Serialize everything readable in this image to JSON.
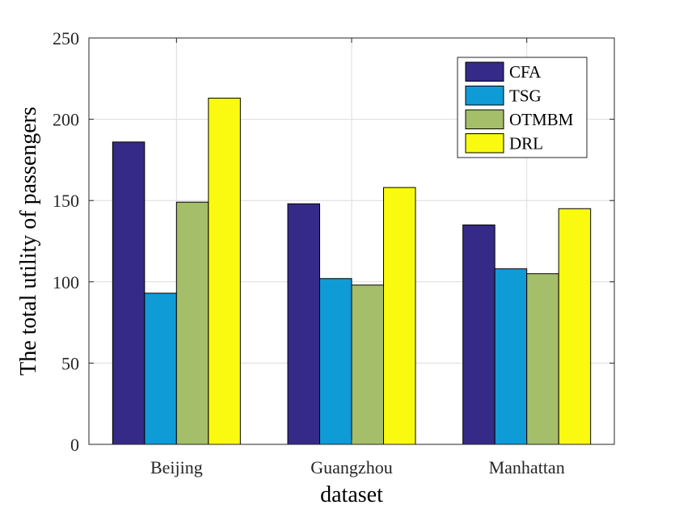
{
  "chart_data": {
    "type": "bar",
    "categories": [
      "Beijing",
      "Guangzhou",
      "Manhattan"
    ],
    "series": [
      {
        "name": "CFA",
        "color": "#352a87",
        "values": [
          186,
          148,
          135
        ]
      },
      {
        "name": "TSG",
        "color": "#0f9bd6",
        "values": [
          93,
          102,
          108
        ]
      },
      {
        "name": "OTMBM",
        "color": "#a5be6a",
        "values": [
          149,
          98,
          105
        ]
      },
      {
        "name": "DRL",
        "color": "#f9fa0f",
        "values": [
          213,
          158,
          145
        ]
      }
    ],
    "title": "",
    "xlabel": "dataset",
    "ylabel": "The total utility of passengers",
    "ylim": [
      0,
      250
    ],
    "yticks": [
      0,
      50,
      100,
      150,
      200,
      250
    ],
    "grid": true,
    "legend_position": "top-right"
  }
}
